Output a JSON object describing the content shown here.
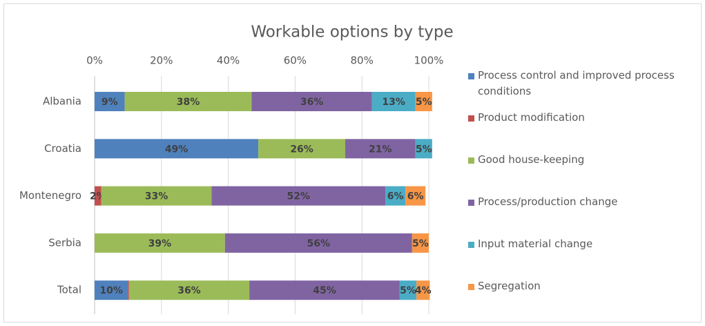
{
  "chart_data": {
    "type": "stacked_bar_horizontal",
    "title": "Workable options by type",
    "categories": [
      "Albania",
      "Croatia",
      "Montenegro",
      "Serbia",
      "Total"
    ],
    "series": [
      {
        "name": "Process control and improved process conditions",
        "color": "#4f81bd",
        "values": [
          9,
          49,
          0,
          0,
          10
        ],
        "value_labels": [
          "9%",
          "49%",
          null,
          null,
          "10%"
        ]
      },
      {
        "name": "Product modification",
        "color": "#c0504d",
        "values": [
          0,
          0,
          2,
          0,
          0.3
        ],
        "value_labels": [
          null,
          null,
          "2%",
          null,
          null
        ]
      },
      {
        "name": "Good house-keeping",
        "color": "#9bbb59",
        "values": [
          38,
          26,
          33,
          39,
          36
        ],
        "value_labels": [
          "38%",
          "26%",
          "33%",
          "39%",
          "36%"
        ]
      },
      {
        "name": "Process/production change",
        "color": "#8064a2",
        "values": [
          36,
          21,
          52,
          56,
          45
        ],
        "value_labels": [
          "36%",
          "21%",
          "52%",
          "56%",
          "45%"
        ]
      },
      {
        "name": "Input material change",
        "color": "#4bacc6",
        "values": [
          13,
          5,
          6,
          0,
          5
        ],
        "value_labels": [
          "13%",
          "5%",
          "6%",
          null,
          "5%"
        ]
      },
      {
        "name": "Segregation",
        "color": "#f79646",
        "values": [
          5,
          0,
          6,
          5,
          4
        ],
        "value_labels": [
          "5%",
          null,
          "6%",
          "5%",
          "4%"
        ]
      }
    ],
    "xlim": [
      0,
      100
    ],
    "xticks": [
      {
        "value": 0,
        "label": "0%"
      },
      {
        "value": 20,
        "label": "20%"
      },
      {
        "value": 40,
        "label": "40%"
      },
      {
        "value": 60,
        "label": "60%"
      },
      {
        "value": 80,
        "label": "80%"
      },
      {
        "value": 100,
        "label": "100%"
      }
    ],
    "grid": true,
    "legend": "right"
  }
}
